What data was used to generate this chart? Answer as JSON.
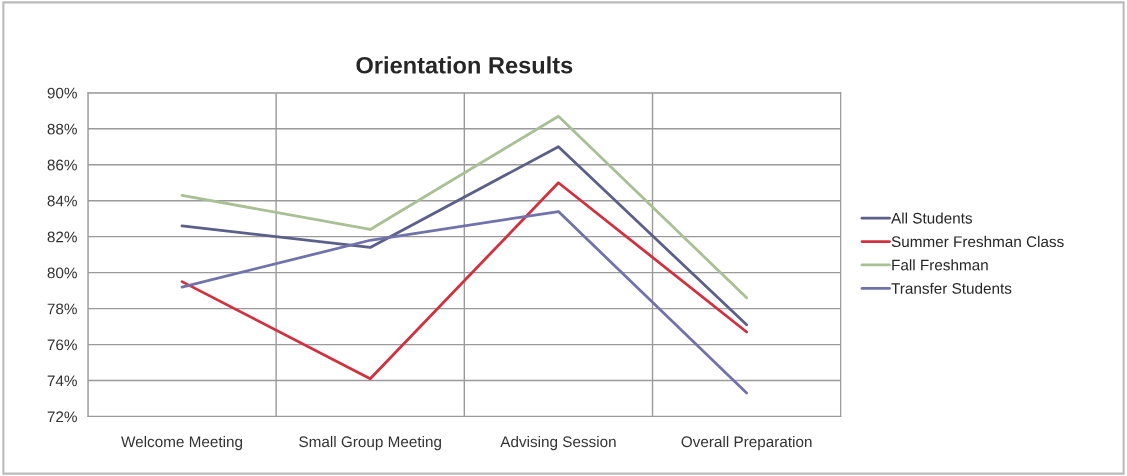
{
  "chart_data": {
    "type": "line",
    "title": "Orientation Results",
    "categories": [
      "Welcome Meeting",
      "Small Group Meeting",
      "Advising Session",
      "Overall Preparation"
    ],
    "series": [
      {
        "name": "All Students",
        "color": "#5c5f88",
        "values": [
          82.6,
          81.4,
          87.0,
          77.1
        ]
      },
      {
        "name": "Summer Freshman Class",
        "color": "#d2303f",
        "values": [
          79.5,
          74.1,
          85.0,
          76.7
        ]
      },
      {
        "name": "Fall Freshman",
        "color": "#a9bf94",
        "values": [
          84.3,
          82.4,
          88.7,
          78.6
        ]
      },
      {
        "name": "Transfer Students",
        "color": "#7272aa",
        "values": [
          79.2,
          81.8,
          83.4,
          73.3
        ]
      }
    ],
    "ylim": [
      72,
      90
    ],
    "yticks": [
      {
        "value": 72,
        "label": "72%"
      },
      {
        "value": 74,
        "label": "74%"
      },
      {
        "value": 76,
        "label": "76%"
      },
      {
        "value": 78,
        "label": "78%"
      },
      {
        "value": 80,
        "label": "80%"
      },
      {
        "value": 82,
        "label": "82%"
      },
      {
        "value": 84,
        "label": "84%"
      },
      {
        "value": 86,
        "label": "86%"
      },
      {
        "value": 88,
        "label": "88%"
      },
      {
        "value": 90,
        "label": "90%"
      }
    ],
    "grid": true,
    "legend": "right",
    "marker": "none",
    "line_style": "solid"
  }
}
